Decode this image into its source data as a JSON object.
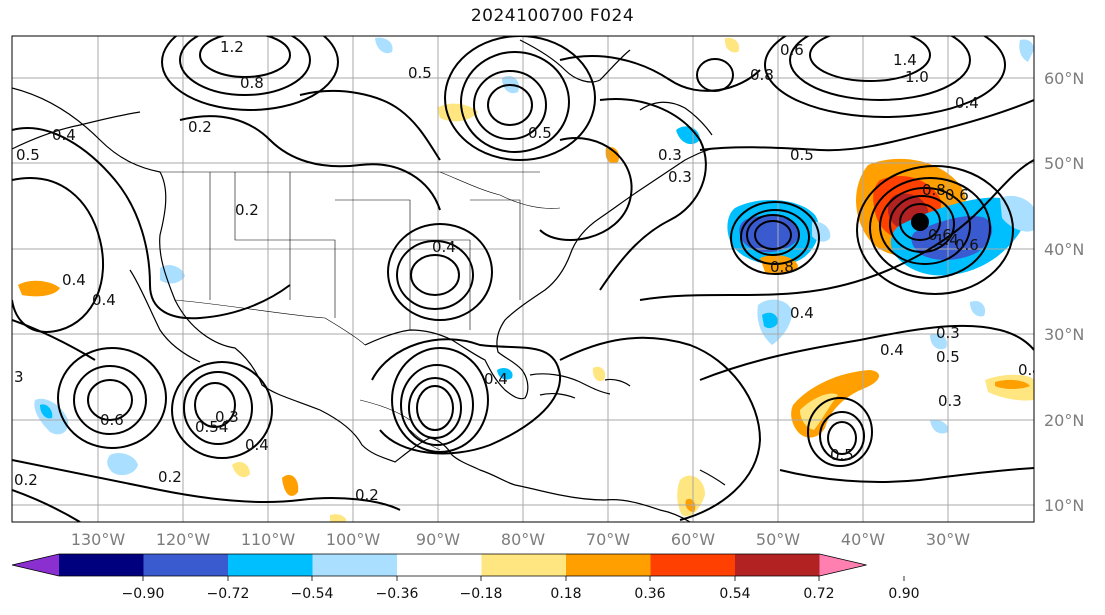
{
  "title": "2024100700 F024",
  "latitude_labels": [
    "60°N",
    "50°N",
    "40°N",
    "30°N",
    "20°N",
    "10°N"
  ],
  "longitude_labels": [
    "130°W",
    "120°W",
    "110°W",
    "100°W",
    "90°W",
    "80°W",
    "70°W",
    "60°W",
    "50°W",
    "40°W",
    "30°W"
  ],
  "colorbar": {
    "colors": [
      "#8b2fd0",
      "#00007f",
      "#3a5bd0",
      "#00bfff",
      "#aadfff",
      "#ffffff",
      "#ffe680",
      "#ffa000",
      "#ff4000",
      "#b22222",
      "#ff80b0"
    ],
    "ticks": [
      "−0.90",
      "−0.72",
      "−0.54",
      "−0.36",
      "−0.18",
      "0.18",
      "0.36",
      "0.54",
      "0.72",
      "0.90"
    ]
  },
  "contour_labels": [
    "1.2",
    "0.8",
    "0.5",
    "0.4",
    "0.2",
    "0.5",
    "0.3",
    "0.4",
    "0.4",
    "0.4",
    "0.4",
    "0.6",
    "0.8",
    "0.8",
    "1.4",
    "1.0",
    "0.4",
    "0.5",
    "0.6",
    "0.2",
    "0.4",
    "0.5",
    "0.3",
    "0.4",
    "0.5",
    "0.3",
    "0.3",
    "0.2",
    "0.6",
    "0.54",
    "0.4",
    "0.2",
    "0.2",
    "3",
    "0.3",
    "0.4",
    "0.5",
    "0.6",
    "0.8",
    "1.4",
    "0.6"
  ]
}
